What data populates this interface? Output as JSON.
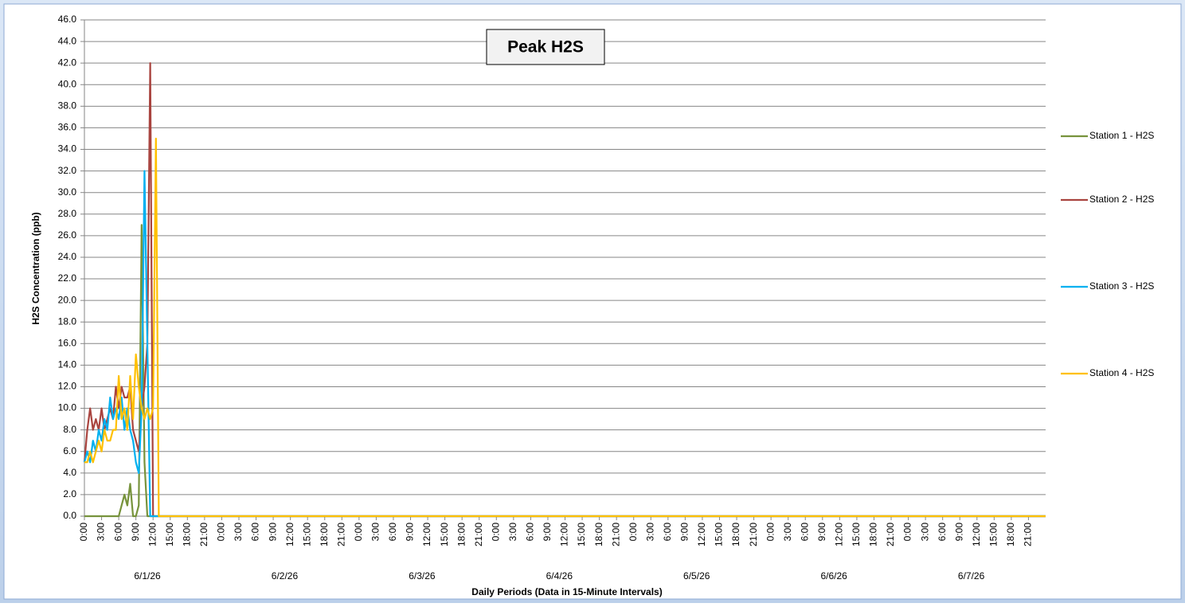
{
  "chart_data": {
    "type": "line",
    "title": "Peak H2S",
    "x_label": "Daily Periods (Data in 15-Minute Intervals)",
    "y_label": "H2S Concentration (ppb)",
    "x": [
      0,
      0.5,
      1,
      1.5,
      2,
      2.5,
      3,
      3.5,
      4,
      4.5,
      5,
      5.5,
      6,
      6.5,
      7,
      7.5,
      8,
      8.5,
      9,
      9.5,
      10,
      10.5,
      11,
      11.5,
      12,
      12.5,
      13,
      168
    ],
    "series": [
      {
        "name": "Station 1 - H2S",
        "color": "#77933c",
        "values": [
          0,
          0,
          0,
          0,
          0,
          0,
          0,
          0,
          0,
          0,
          0,
          0,
          0,
          1,
          2,
          1,
          3,
          0,
          0,
          1,
          27,
          5,
          0,
          0,
          0,
          0,
          0,
          0
        ]
      },
      {
        "name": "Station 2 - H2S",
        "color": "#a9443f",
        "values": [
          5,
          8,
          10,
          8,
          9,
          8,
          10,
          8,
          9,
          10,
          9,
          12,
          10,
          12,
          11,
          11,
          12,
          8,
          7,
          6,
          10,
          12,
          16,
          42,
          0,
          0,
          0,
          0
        ]
      },
      {
        "name": "Station 3 - H2S",
        "color": "#00b0f0",
        "values": [
          5,
          6,
          5,
          7,
          6,
          8,
          7,
          9,
          8,
          11,
          9,
          10,
          9,
          11,
          8,
          10,
          8,
          7,
          5,
          4,
          10,
          32,
          16,
          0,
          0,
          0,
          0,
          0
        ]
      },
      {
        "name": "Station 4 - H2S",
        "color": "#ffc000",
        "values": [
          5,
          5,
          6,
          5,
          6,
          7,
          6,
          8,
          7,
          7,
          8,
          8,
          13,
          9,
          10,
          8,
          13,
          9,
          15,
          12,
          10,
          9,
          10,
          9,
          10,
          35,
          0,
          0
        ]
      }
    ],
    "xlim": [
      0,
      168
    ],
    "ylim": [
      0,
      46
    ],
    "yticks": [
      {
        "value": 0,
        "label": "0.0"
      },
      {
        "value": 2,
        "label": "2.0"
      },
      {
        "value": 4,
        "label": "4.0"
      },
      {
        "value": 6,
        "label": "6.0"
      },
      {
        "value": 8,
        "label": "8.0"
      },
      {
        "value": 10,
        "label": "10.0"
      },
      {
        "value": 12,
        "label": "12.0"
      },
      {
        "value": 14,
        "label": "14.0"
      },
      {
        "value": 16,
        "label": "16.0"
      },
      {
        "value": 18,
        "label": "18.0"
      },
      {
        "value": 20,
        "label": "20.0"
      },
      {
        "value": 22,
        "label": "22.0"
      },
      {
        "value": 24,
        "label": "24.0"
      },
      {
        "value": 26,
        "label": "26.0"
      },
      {
        "value": 28,
        "label": "28.0"
      },
      {
        "value": 30,
        "label": "30.0"
      },
      {
        "value": 32,
        "label": "32.0"
      },
      {
        "value": 34,
        "label": "34.0"
      },
      {
        "value": 36,
        "label": "36.0"
      },
      {
        "value": 38,
        "label": "38.0"
      },
      {
        "value": 40,
        "label": "40.0"
      },
      {
        "value": 42,
        "label": "42.0"
      },
      {
        "value": 44,
        "label": "44.0"
      },
      {
        "value": 46,
        "label": "46.0"
      }
    ],
    "xticks": [
      {
        "value": 0,
        "label": "0:00"
      },
      {
        "value": 3,
        "label": "3:00"
      },
      {
        "value": 6,
        "label": "6:00"
      },
      {
        "value": 9,
        "label": "9:00"
      },
      {
        "value": 12,
        "label": "12:00"
      },
      {
        "value": 15,
        "label": "15:00"
      },
      {
        "value": 18,
        "label": "18:00"
      },
      {
        "value": 21,
        "label": "21:00"
      },
      {
        "value": 24,
        "label": "0:00"
      },
      {
        "value": 27,
        "label": "3:00"
      },
      {
        "value": 30,
        "label": "6:00"
      },
      {
        "value": 33,
        "label": "9:00"
      },
      {
        "value": 36,
        "label": "12:00"
      },
      {
        "value": 39,
        "label": "15:00"
      },
      {
        "value": 42,
        "label": "18:00"
      },
      {
        "value": 45,
        "label": "21:00"
      },
      {
        "value": 48,
        "label": "0:00"
      },
      {
        "value": 51,
        "label": "3:00"
      },
      {
        "value": 54,
        "label": "6:00"
      },
      {
        "value": 57,
        "label": "9:00"
      },
      {
        "value": 60,
        "label": "12:00"
      },
      {
        "value": 63,
        "label": "15:00"
      },
      {
        "value": 66,
        "label": "18:00"
      },
      {
        "value": 69,
        "label": "21:00"
      },
      {
        "value": 72,
        "label": "0:00"
      },
      {
        "value": 75,
        "label": "3:00"
      },
      {
        "value": 78,
        "label": "6:00"
      },
      {
        "value": 81,
        "label": "9:00"
      },
      {
        "value": 84,
        "label": "12:00"
      },
      {
        "value": 87,
        "label": "15:00"
      },
      {
        "value": 90,
        "label": "18:00"
      },
      {
        "value": 93,
        "label": "21:00"
      },
      {
        "value": 96,
        "label": "0:00"
      },
      {
        "value": 99,
        "label": "3:00"
      },
      {
        "value": 102,
        "label": "6:00"
      },
      {
        "value": 105,
        "label": "9:00"
      },
      {
        "value": 108,
        "label": "12:00"
      },
      {
        "value": 111,
        "label": "15:00"
      },
      {
        "value": 114,
        "label": "18:00"
      },
      {
        "value": 117,
        "label": "21:00"
      },
      {
        "value": 120,
        "label": "0:00"
      },
      {
        "value": 123,
        "label": "3:00"
      },
      {
        "value": 126,
        "label": "6:00"
      },
      {
        "value": 129,
        "label": "9:00"
      },
      {
        "value": 132,
        "label": "12:00"
      },
      {
        "value": 135,
        "label": "15:00"
      },
      {
        "value": 138,
        "label": "18:00"
      },
      {
        "value": 141,
        "label": "21:00"
      },
      {
        "value": 144,
        "label": "0:00"
      },
      {
        "value": 147,
        "label": "3:00"
      },
      {
        "value": 150,
        "label": "6:00"
      },
      {
        "value": 153,
        "label": "9:00"
      },
      {
        "value": 156,
        "label": "12:00"
      },
      {
        "value": 159,
        "label": "15:00"
      },
      {
        "value": 162,
        "label": "18:00"
      },
      {
        "value": 165,
        "label": "21:00"
      }
    ],
    "day_ticks": [
      {
        "value": 11,
        "label": "6/1/26"
      },
      {
        "value": 35,
        "label": "6/2/26"
      },
      {
        "value": 59,
        "label": "6/3/26"
      },
      {
        "value": 83,
        "label": "6/4/26"
      },
      {
        "value": 107,
        "label": "6/5/26"
      },
      {
        "value": 131,
        "label": "6/6/26"
      },
      {
        "value": 155,
        "label": "6/7/26"
      }
    ],
    "grid": true,
    "legend": "right"
  }
}
